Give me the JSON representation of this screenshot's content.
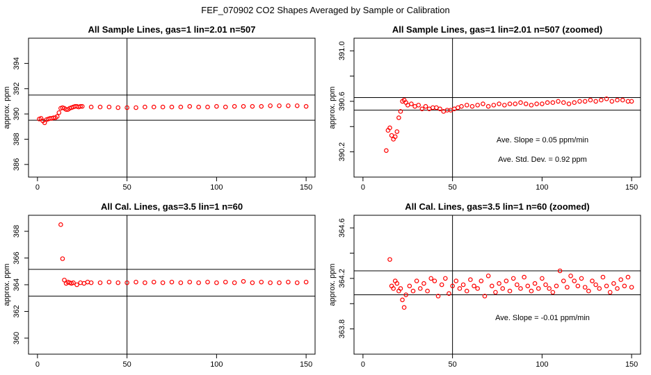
{
  "figure_title": "FEF_070902  CO2 Shapes Averaged by Sample or Calibration",
  "chart_data": [
    {
      "type": "scatter",
      "title": "All Sample Lines, gas=1 lin=2.01 n=507",
      "xlabel": "",
      "ylabel": "approx. ppm",
      "xlim": [
        -5,
        155
      ],
      "ylim": [
        385,
        396
      ],
      "xticks": [
        0,
        50,
        100,
        150
      ],
      "yticks": [
        386,
        388,
        390,
        392,
        394
      ],
      "vline": 50,
      "hlines": [
        389.5,
        391.5
      ],
      "marker_color": "#ff0000",
      "series": [
        {
          "x": [
            1,
            2,
            3,
            4,
            5,
            6,
            7,
            8,
            9,
            10,
            11,
            12,
            13,
            14,
            15,
            16,
            17,
            18,
            19,
            20,
            21,
            22,
            23,
            24,
            25,
            30,
            35,
            40,
            45,
            50,
            55,
            60,
            65,
            70,
            75,
            80,
            85,
            90,
            95,
            100,
            105,
            110,
            115,
            120,
            125,
            130,
            135,
            140,
            145,
            150
          ],
          "y": [
            389.6,
            389.65,
            389.45,
            389.3,
            389.55,
            389.6,
            389.65,
            389.65,
            389.7,
            389.7,
            389.8,
            390.1,
            390.45,
            390.5,
            390.45,
            390.35,
            390.35,
            390.45,
            390.5,
            390.55,
            390.6,
            390.6,
            390.55,
            390.6,
            390.6,
            390.55,
            390.55,
            390.55,
            390.5,
            390.5,
            390.5,
            390.55,
            390.55,
            390.55,
            390.55,
            390.55,
            390.6,
            390.55,
            390.55,
            390.6,
            390.55,
            390.6,
            390.6,
            390.6,
            390.6,
            390.65,
            390.65,
            390.65,
            390.65,
            390.6
          ]
        }
      ]
    },
    {
      "type": "scatter",
      "title": "All Sample Lines, gas=1 lin=2.01 n=507 (zoomed)",
      "xlabel": "",
      "ylabel": "approx. ppm",
      "xlim": [
        -5,
        155
      ],
      "ylim": [
        390.0,
        391.1
      ],
      "xticks": [
        0,
        50,
        100,
        150
      ],
      "yticks": [
        390.2,
        390.4,
        390.6,
        390.8,
        391.0
      ],
      "ytick_labels": [
        "390.2",
        "",
        "390.6",
        "",
        "391.0"
      ],
      "vline": 50,
      "hlines": [
        390.53,
        390.63
      ],
      "annotations": [
        "Ave. Slope =  0.05  ppm/min",
        "Ave. Std. Dev. =  0.92  ppm"
      ],
      "marker_color": "#ff0000",
      "series": [
        {
          "x": [
            13,
            14,
            15,
            16,
            17,
            18,
            19,
            20,
            21,
            22,
            23,
            24,
            25,
            27,
            29,
            31,
            33,
            35,
            37,
            39,
            41,
            43,
            45,
            47,
            49,
            51,
            53,
            55,
            58,
            61,
            64,
            67,
            70,
            73,
            76,
            79,
            82,
            85,
            88,
            91,
            94,
            97,
            100,
            103,
            106,
            109,
            112,
            115,
            118,
            121,
            124,
            127,
            130,
            133,
            136,
            139,
            142,
            145,
            148,
            150
          ],
          "y": [
            390.21,
            390.37,
            390.39,
            390.33,
            390.3,
            390.32,
            390.36,
            390.47,
            390.52,
            390.6,
            390.61,
            390.59,
            390.57,
            390.58,
            390.56,
            390.57,
            390.54,
            390.56,
            390.54,
            390.55,
            390.55,
            390.54,
            390.52,
            390.53,
            390.53,
            390.54,
            390.55,
            390.56,
            390.57,
            390.56,
            390.57,
            390.58,
            390.56,
            390.57,
            390.58,
            390.57,
            390.58,
            390.58,
            390.59,
            390.58,
            390.57,
            390.58,
            390.58,
            390.59,
            390.59,
            390.6,
            390.59,
            390.58,
            390.59,
            390.6,
            390.6,
            390.61,
            390.6,
            390.61,
            390.62,
            390.6,
            390.61,
            390.61,
            390.6,
            390.6
          ]
        }
      ]
    },
    {
      "type": "scatter",
      "title": "All Cal. Lines, gas=3.5 lin=1 n=60",
      "xlabel": "",
      "ylabel": "approx. ppm",
      "xlim": [
        -5,
        155
      ],
      "ylim": [
        358.8,
        369.2
      ],
      "xticks": [
        0,
        50,
        100,
        150
      ],
      "yticks": [
        360,
        362,
        364,
        366,
        368
      ],
      "vline": 50,
      "hlines": [
        363.15,
        365.15
      ],
      "marker_color": "#ff0000",
      "series": [
        {
          "x": [
            13,
            14,
            15,
            16,
            17,
            18,
            19,
            20,
            22,
            24,
            26,
            28,
            30,
            35,
            40,
            45,
            50,
            55,
            60,
            65,
            70,
            75,
            80,
            85,
            90,
            95,
            100,
            105,
            110,
            115,
            120,
            125,
            130,
            135,
            140,
            145,
            150
          ],
          "y": [
            368.5,
            365.95,
            364.35,
            364.1,
            364.2,
            364.15,
            364.1,
            364.15,
            364.0,
            364.15,
            364.1,
            364.2,
            364.15,
            364.15,
            364.2,
            364.15,
            364.15,
            364.2,
            364.15,
            364.2,
            364.15,
            364.2,
            364.15,
            364.2,
            364.15,
            364.2,
            364.15,
            364.2,
            364.15,
            364.25,
            364.15,
            364.2,
            364.15,
            364.15,
            364.2,
            364.15,
            364.2
          ]
        }
      ]
    },
    {
      "type": "scatter",
      "title": "All Cal. Lines, gas=3.5 lin=1 n=60 (zoomed)",
      "xlabel": "",
      "ylabel": "approx. ppm",
      "xlim": [
        -5,
        155
      ],
      "ylim": [
        363.6,
        364.7
      ],
      "xticks": [
        0,
        50,
        100,
        150
      ],
      "yticks": [
        363.8,
        364.0,
        364.2,
        364.4,
        364.6
      ],
      "ytick_labels": [
        "363.8",
        "",
        "364.2",
        "",
        "364.6"
      ],
      "vline": 50,
      "hlines": [
        364.07,
        364.26
      ],
      "annotations": [
        "Ave. Slope =  -0.01  ppm/min"
      ],
      "marker_color": "#ff0000",
      "series": [
        {
          "x": [
            15,
            16,
            17,
            18,
            19,
            20,
            21,
            22,
            23,
            24,
            26,
            28,
            30,
            32,
            34,
            36,
            38,
            40,
            42,
            44,
            46,
            48,
            50,
            52,
            54,
            56,
            58,
            60,
            62,
            64,
            66,
            68,
            70,
            72,
            74,
            76,
            78,
            80,
            82,
            84,
            86,
            88,
            90,
            92,
            94,
            96,
            98,
            100,
            102,
            104,
            106,
            108,
            110,
            112,
            114,
            116,
            118,
            120,
            122,
            124,
            126,
            128,
            130,
            132,
            134,
            136,
            138,
            140,
            142,
            144,
            146,
            148,
            150
          ],
          "y": [
            364.35,
            364.14,
            364.12,
            364.18,
            364.16,
            364.1,
            364.12,
            364.03,
            363.97,
            364.07,
            364.14,
            364.1,
            364.18,
            364.12,
            364.16,
            364.1,
            364.2,
            364.18,
            364.06,
            364.15,
            364.2,
            364.08,
            364.14,
            364.18,
            364.12,
            364.15,
            364.1,
            364.19,
            364.14,
            364.12,
            364.18,
            364.06,
            364.22,
            364.14,
            364.09,
            364.16,
            364.12,
            364.18,
            364.1,
            364.2,
            364.15,
            364.12,
            364.21,
            364.14,
            364.1,
            364.16,
            364.12,
            364.2,
            364.15,
            364.12,
            364.09,
            364.14,
            364.26,
            364.18,
            364.13,
            364.22,
            364.18,
            364.14,
            364.2,
            364.13,
            364.1,
            364.18,
            364.15,
            364.12,
            364.21,
            364.14,
            364.09,
            364.16,
            364.12,
            364.19,
            364.14,
            364.21,
            364.13
          ]
        }
      ]
    }
  ]
}
